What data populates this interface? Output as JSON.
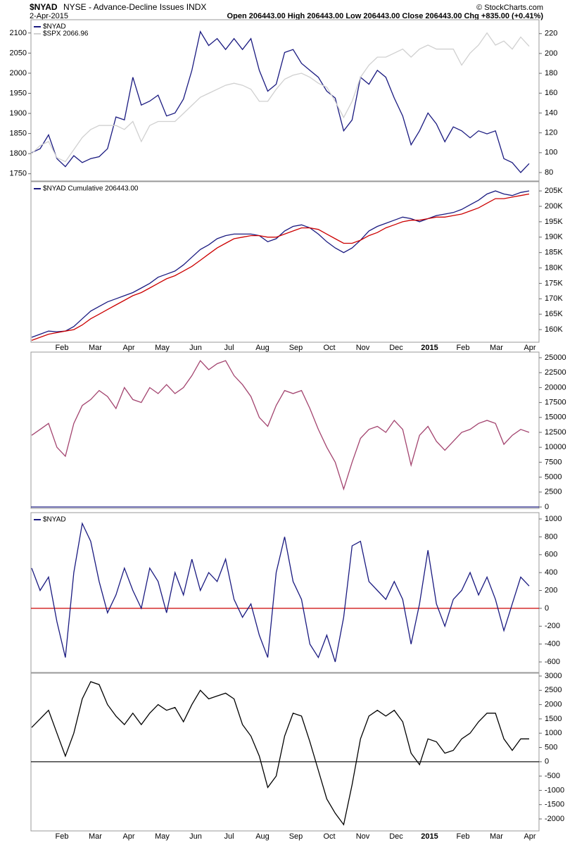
{
  "header": {
    "symbol": "$NYAD",
    "description": "NYSE - Advance-Decline Issues INDX",
    "date": "2-Apr-2015",
    "quote": "Open 206443.00  High 206443.00  Low 206443.00  Close 206443.00  Chg +835.00 (+0.41%)",
    "copyright": "© StockCharts.com"
  },
  "chart_data": [
    {
      "type": "line",
      "ylim": [
        1732,
        2133
      ],
      "yticks": [
        1750,
        1800,
        1850,
        1900,
        1950,
        2000,
        2050,
        2100
      ],
      "y2lim": [
        71.5,
        234
      ],
      "y2ticks": [
        80,
        100,
        120,
        140,
        160,
        180,
        200,
        220
      ],
      "series": [
        {
          "name": "$NYAD",
          "color": "#1a1a80",
          "axis": "y2",
          "values": [
            100,
            104,
            118,
            94,
            86,
            97,
            90,
            94,
            96,
            104,
            136,
            133,
            176,
            148,
            152,
            158,
            137,
            140,
            154,
            183,
            222,
            208,
            215,
            204,
            215,
            204,
            215,
            183,
            162,
            169,
            201,
            204,
            190,
            183,
            176,
            162,
            155,
            122,
            133,
            176,
            169,
            183,
            176,
            155,
            137,
            108,
            122,
            140,
            129,
            111,
            126,
            122,
            115,
            122,
            119,
            122,
            94,
            90,
            80,
            89
          ]
        },
        {
          "name": "$SPX 2066.96",
          "color": "#d0d0d0",
          "values": [
            1800,
            1820,
            1830,
            1790,
            1780,
            1810,
            1840,
            1860,
            1870,
            1870,
            1870,
            1860,
            1880,
            1830,
            1870,
            1880,
            1880,
            1880,
            1900,
            1920,
            1940,
            1950,
            1960,
            1970,
            1975,
            1970,
            1960,
            1930,
            1930,
            1960,
            1985,
            1995,
            2000,
            1990,
            1975,
            1965,
            1930,
            1890,
            1930,
            1990,
            2020,
            2040,
            2040,
            2050,
            2060,
            2040,
            2060,
            2070,
            2060,
            2060,
            2060,
            2020,
            2050,
            2070,
            2100,
            2070,
            2080,
            2060,
            2090,
            2067
          ]
        }
      ]
    },
    {
      "type": "line",
      "ylim": [
        155900,
        208000
      ],
      "y2ticks": [
        {
          "value": 160000,
          "label": "160K"
        },
        {
          "value": 165000,
          "label": "165K"
        },
        {
          "value": 170000,
          "label": "170K"
        },
        {
          "value": 175000,
          "label": "175K"
        },
        {
          "value": 180000,
          "label": "180K"
        },
        {
          "value": 185000,
          "label": "185K"
        },
        {
          "value": 190000,
          "label": "190K"
        },
        {
          "value": 195000,
          "label": "195K"
        },
        {
          "value": 200000,
          "label": "200K"
        },
        {
          "value": 205000,
          "label": "205K"
        }
      ],
      "series": [
        {
          "name": "$NYAD Cumulative 206443.00",
          "color": "#1a1a80",
          "values": [
            157500,
            158500,
            159500,
            159300,
            159500,
            161000,
            163500,
            166000,
            167500,
            169000,
            170000,
            171000,
            172000,
            173500,
            175000,
            177000,
            178000,
            179000,
            181000,
            183500,
            186000,
            187500,
            189500,
            190500,
            191000,
            191000,
            191000,
            190500,
            188500,
            189500,
            192000,
            193500,
            194000,
            193000,
            191000,
            188500,
            186500,
            185000,
            186500,
            189000,
            192000,
            193500,
            194500,
            195500,
            196500,
            196000,
            195000,
            196000,
            197000,
            197500,
            198000,
            199000,
            200500,
            202000,
            204000,
            205000,
            204000,
            203500,
            204500,
            205000
          ]
        },
        {
          "color": "#cc0000",
          "values": [
            156500,
            157500,
            158500,
            159000,
            159500,
            160000,
            161500,
            163500,
            165000,
            166500,
            168000,
            169500,
            171000,
            172000,
            173500,
            175000,
            176500,
            177500,
            179000,
            180500,
            182500,
            184500,
            186500,
            188000,
            189500,
            190000,
            190500,
            190500,
            190000,
            190000,
            191000,
            192000,
            193000,
            193000,
            192500,
            191000,
            189500,
            188000,
            188000,
            189000,
            190500,
            191500,
            193000,
            194000,
            195000,
            195500,
            195500,
            196000,
            196500,
            196500,
            197000,
            197500,
            198500,
            199500,
            201000,
            202500,
            202500,
            203000,
            203500,
            204000
          ]
        }
      ],
      "xtick_labels": [
        "Feb",
        "Mar",
        "Apr",
        "May",
        "Jun",
        "Jul",
        "Aug",
        "Sep",
        "Oct",
        "Nov",
        "Dec",
        "2015",
        "Feb",
        "Mar",
        "Apr"
      ]
    },
    {
      "type": "line",
      "ylim": [
        -236,
        25943
      ],
      "y2ticks": [
        0,
        2500,
        5000,
        7500,
        10000,
        12500,
        15000,
        17500,
        20000,
        22500,
        25000
      ],
      "reference_line": {
        "value": 0,
        "color": "#1a1a80"
      },
      "series": [
        {
          "color": "#a3446f",
          "values": [
            12000,
            13000,
            14000,
            10000,
            8500,
            14000,
            17000,
            18000,
            19500,
            18500,
            16500,
            20000,
            18000,
            17500,
            20000,
            19000,
            20500,
            19000,
            20000,
            22000,
            24500,
            23000,
            24000,
            24500,
            22000,
            20500,
            18500,
            15000,
            13500,
            17000,
            19500,
            19000,
            19500,
            16500,
            13000,
            10000,
            7500,
            3000,
            7500,
            11500,
            13000,
            13500,
            12500,
            14500,
            13000,
            7000,
            12000,
            13500,
            11000,
            9500,
            11000,
            12500,
            13000,
            14000,
            14500,
            14000,
            10500,
            12000,
            13000,
            12500
          ]
        }
      ]
    },
    {
      "type": "line",
      "ylim": [
        -718,
        1071
      ],
      "y2ticks": [
        -600,
        -400,
        -200,
        0,
        200,
        400,
        600,
        800,
        1000
      ],
      "reference_line": {
        "value": 0,
        "color": "#cc0000"
      },
      "series": [
        {
          "name": "$NYAD",
          "color": "#1a1a80",
          "values": [
            450,
            200,
            350,
            -150,
            -550,
            400,
            950,
            750,
            300,
            -50,
            150,
            450,
            200,
            0,
            450,
            300,
            -50,
            400,
            150,
            550,
            200,
            400,
            300,
            550,
            100,
            -100,
            50,
            -300,
            -550,
            400,
            800,
            300,
            100,
            -400,
            -550,
            -300,
            -600,
            -100,
            700,
            750,
            300,
            200,
            100,
            300,
            100,
            -400,
            50,
            650,
            50,
            -200,
            100,
            200,
            400,
            150,
            350,
            100,
            -250,
            50,
            350,
            250
          ]
        }
      ]
    },
    {
      "type": "line",
      "ylim": [
        -2419,
        3099
      ],
      "y2ticks": [
        -2000,
        -1500,
        -1000,
        -500,
        0,
        500,
        1000,
        1500,
        2000,
        2500,
        3000
      ],
      "reference_line": {
        "value": 0,
        "color": "#000000"
      },
      "series": [
        {
          "color": "#000000",
          "values": [
            1200,
            1500,
            1800,
            1000,
            200,
            1000,
            2200,
            2800,
            2700,
            2000,
            1600,
            1300,
            1700,
            1300,
            1700,
            2000,
            1800,
            1900,
            1400,
            2000,
            2500,
            2200,
            2300,
            2400,
            2200,
            1300,
            900,
            200,
            -900,
            -500,
            900,
            1700,
            1600,
            700,
            -300,
            -1300,
            -1800,
            -2200,
            -800,
            800,
            1600,
            1800,
            1600,
            1800,
            1400,
            300,
            -100,
            800,
            700,
            300,
            400,
            800,
            1000,
            1400,
            1700,
            1700,
            800,
            400,
            800,
            800
          ]
        }
      ],
      "xtick_labels": [
        "Feb",
        "Mar",
        "Apr",
        "May",
        "Jun",
        "Jul",
        "Aug",
        "Sep",
        "Oct",
        "Nov",
        "Dec",
        "2015",
        "Feb",
        "Mar",
        "Apr"
      ]
    }
  ]
}
